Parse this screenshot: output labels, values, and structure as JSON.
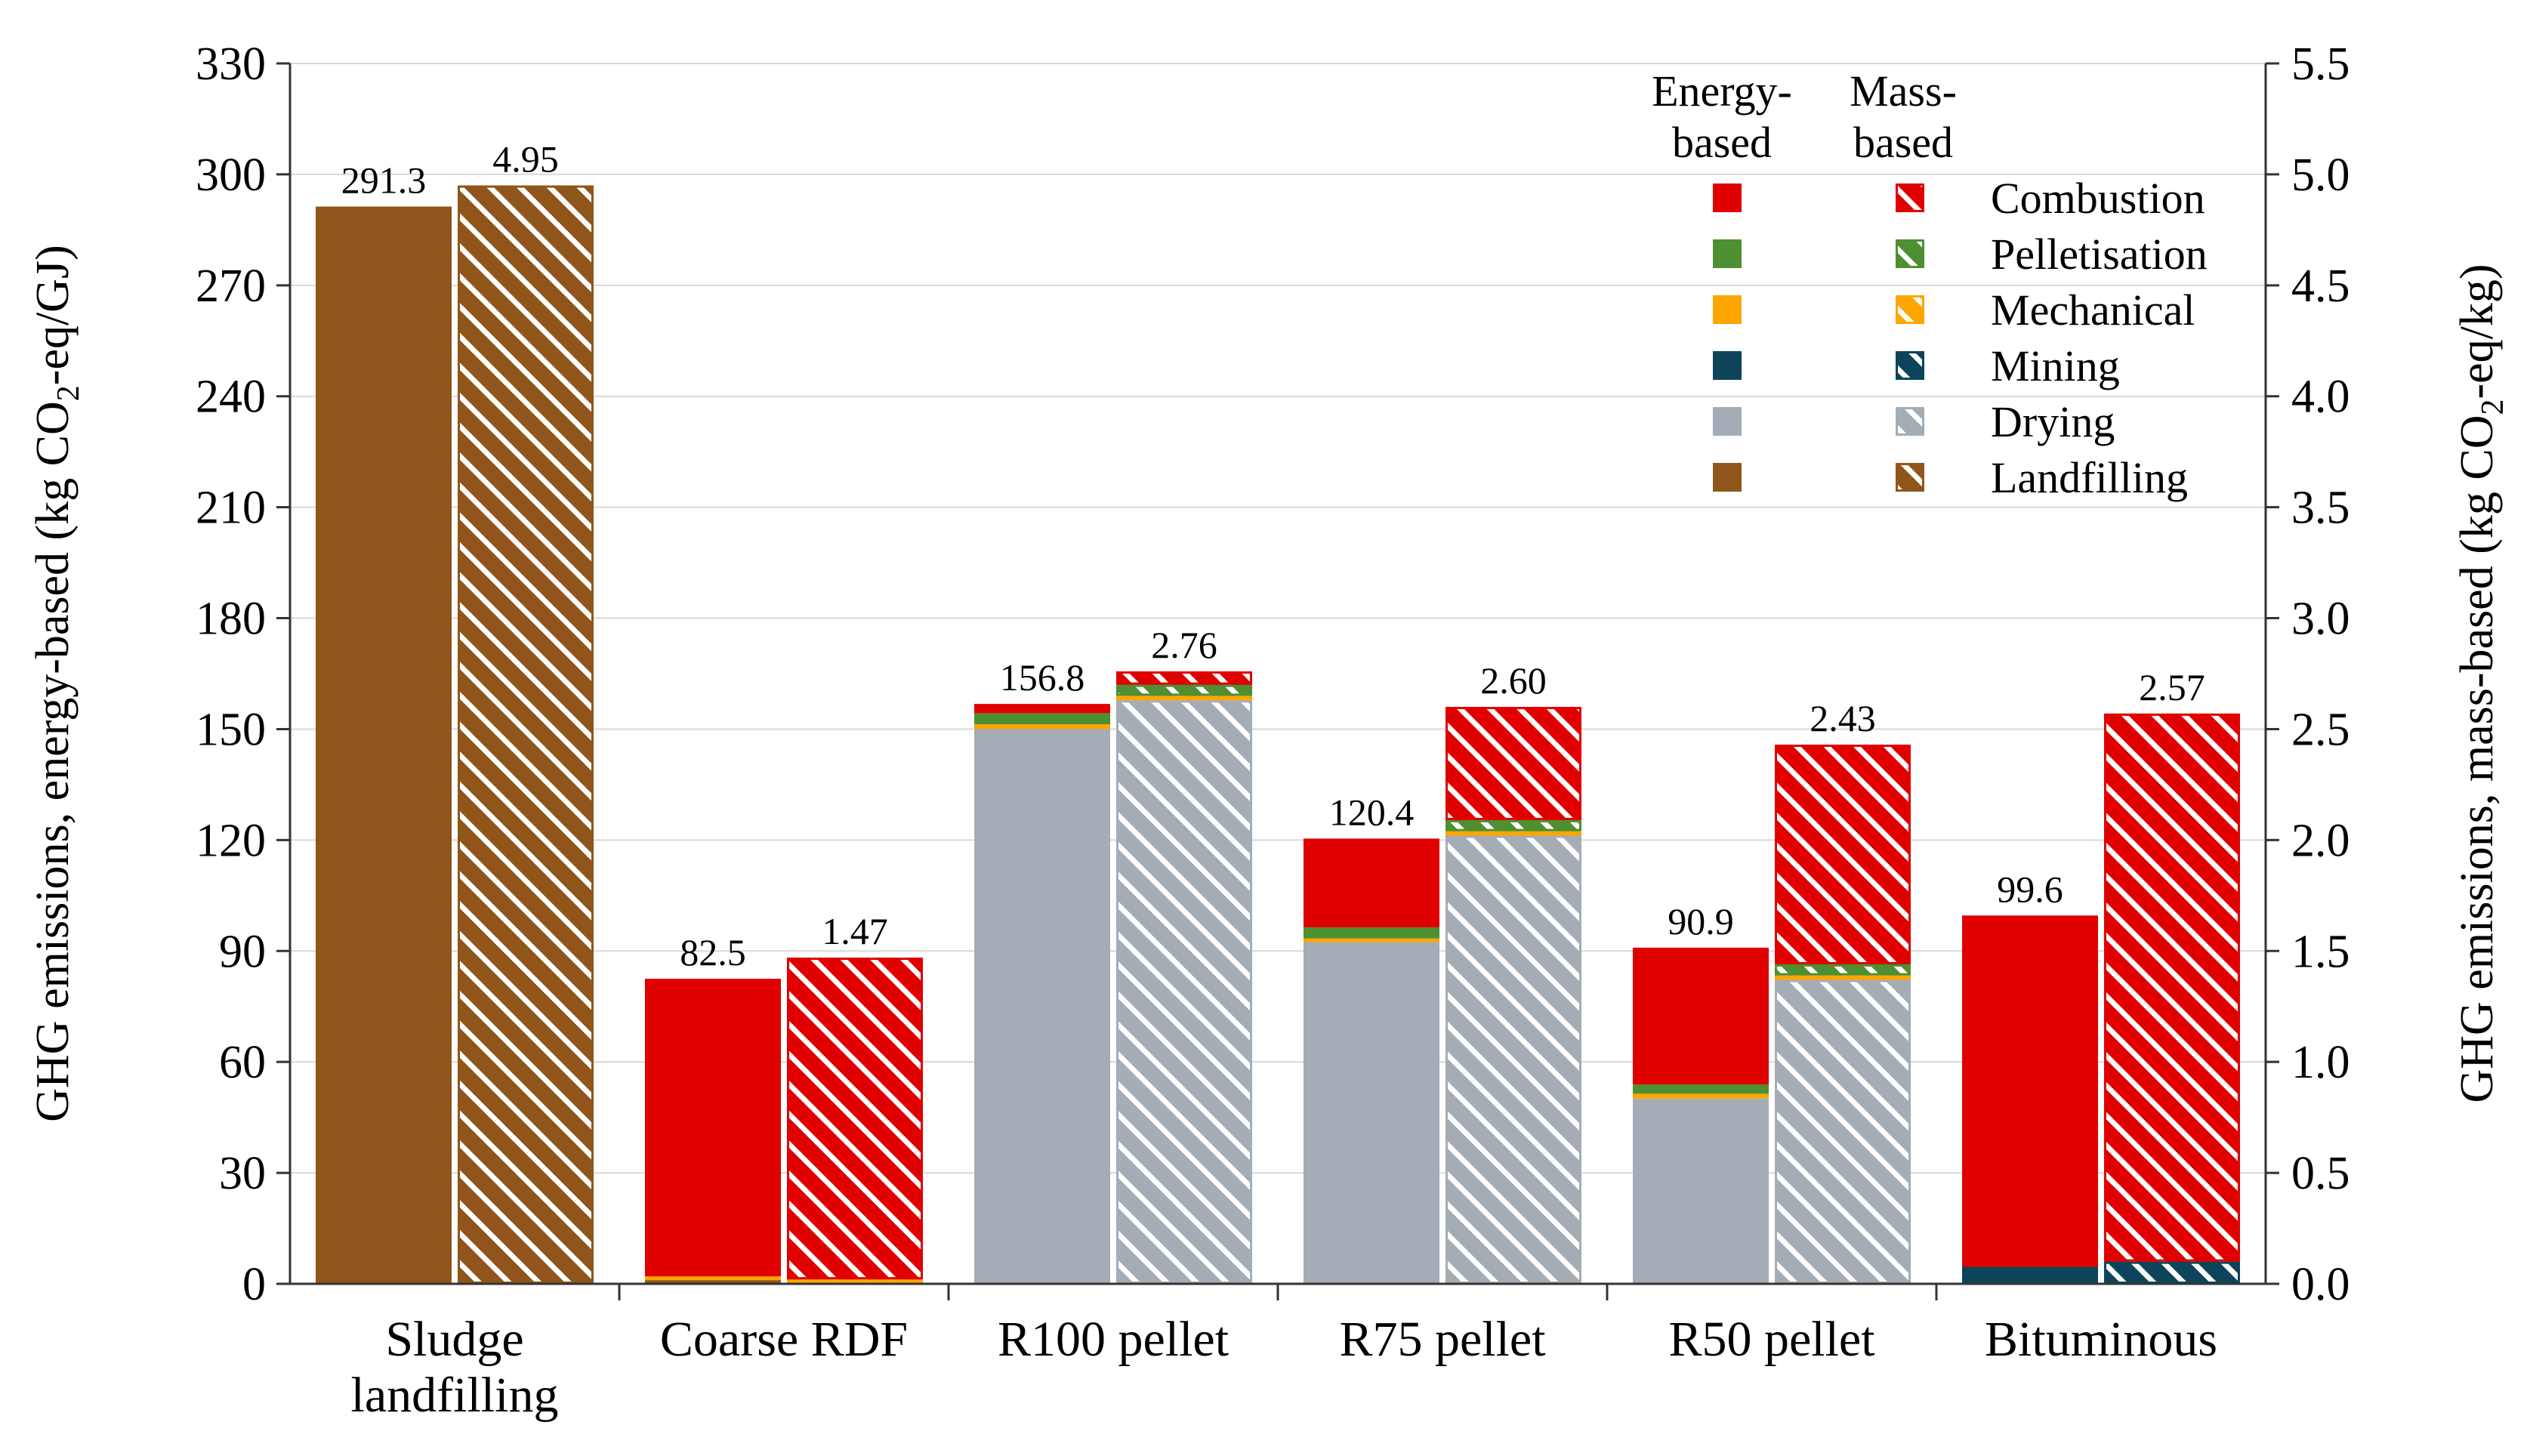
{
  "chart_data": {
    "type": "bar",
    "subtype": "stacked-grouped",
    "categories": [
      "Sludge landfilling",
      "Coarse RDF",
      "R100 pellet",
      "R75 pellet",
      "R50 pellet",
      "Bituminous"
    ],
    "category_lines": [
      [
        "Sludge",
        "landfilling"
      ],
      [
        "Coarse RDF"
      ],
      [
        "R100 pellet"
      ],
      [
        "R75 pellet"
      ],
      [
        "R50 pellet"
      ],
      [
        "Bituminous"
      ]
    ],
    "y_left": {
      "label_parts": [
        "GHG emissions, energy-based (kg CO",
        "2",
        "-eq/GJ)"
      ],
      "ylim": [
        0,
        330
      ],
      "ticks": [
        "0",
        "30",
        "60",
        "90",
        "120",
        "150",
        "180",
        "210",
        "240",
        "270",
        "300",
        "330"
      ]
    },
    "y_right": {
      "label_parts": [
        "GHG emissions, mass-based (kg CO",
        "2",
        "-eq/kg)"
      ],
      "ylim": [
        0,
        5.5
      ],
      "ticks": [
        "0.0",
        "0.5",
        "1.0",
        "1.5",
        "2.0",
        "2.5",
        "3.0",
        "3.5",
        "4.0",
        "4.5",
        "5.0",
        "5.5"
      ]
    },
    "stack_order": [
      "Landfilling",
      "Drying",
      "Mining",
      "Mechanical",
      "Pelletisation",
      "Combustion"
    ],
    "series": [
      {
        "name": "Combustion",
        "color": "#e00000",
        "energy": [
          0,
          80.5,
          2.5,
          24.0,
          37.0,
          95.0
        ],
        "mass": [
          0,
          1.45,
          0.06,
          0.51,
          0.99,
          2.47
        ]
      },
      {
        "name": "Pelletisation",
        "color": "#4e8f32",
        "energy": [
          0,
          0,
          3.0,
          3.0,
          2.5,
          0
        ],
        "mass": [
          0,
          0,
          0.05,
          0.05,
          0.05,
          0
        ]
      },
      {
        "name": "Mechanical",
        "color": "#ffa500",
        "energy": [
          0,
          1.0,
          1.3,
          1.0,
          1.3,
          0
        ],
        "mass": [
          0,
          0.02,
          0.02,
          0.02,
          0.02,
          0
        ]
      },
      {
        "name": "Mining",
        "color": "#0d4459",
        "energy": [
          0,
          0,
          0,
          0,
          0,
          4.6
        ],
        "mass": [
          0,
          0,
          0,
          0,
          0,
          0.1
        ]
      },
      {
        "name": "Drying",
        "color": "#a4adb5",
        "energy": [
          0,
          0,
          150.0,
          92.4,
          50.1,
          0
        ],
        "mass": [
          0,
          0,
          2.63,
          2.02,
          1.37,
          0
        ]
      },
      {
        "name": "Landfilling",
        "color": "#8f551a",
        "energy": [
          291.3,
          1.0,
          0,
          0,
          0,
          0
        ],
        "mass": [
          4.95,
          0,
          0,
          0,
          0,
          0
        ]
      }
    ],
    "totals_energy": [
      "291.3",
      "82.5",
      "156.8",
      "120.4",
      "90.9",
      "99.6"
    ],
    "totals_mass": [
      "4.95",
      "1.47",
      "2.76",
      "2.60",
      "2.43",
      "2.57"
    ],
    "legend": {
      "position": "top-right",
      "header_energy": [
        "Energy-",
        "based"
      ],
      "header_mass": [
        "Mass-",
        "based"
      ],
      "entries": [
        "Combustion",
        "Pelletisation",
        "Mechanical",
        "Mining",
        "Drying",
        "Landfilling"
      ]
    },
    "grid": true
  }
}
